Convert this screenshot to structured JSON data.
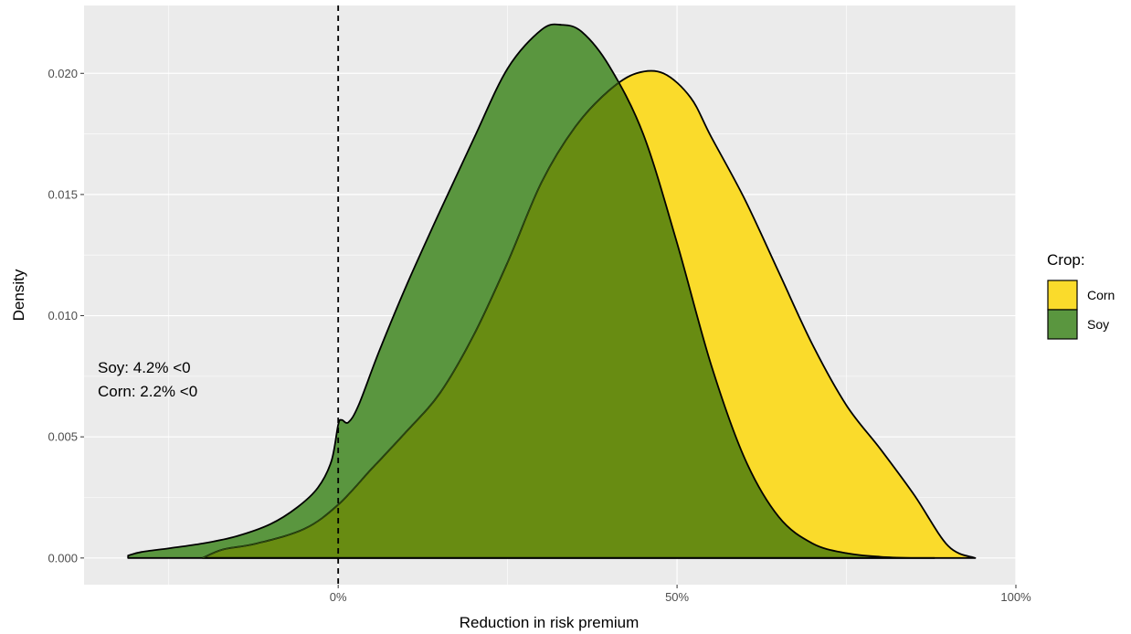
{
  "chart_data": {
    "type": "area",
    "title": "",
    "xlabel": "Reduction in risk premium",
    "ylabel": "Density",
    "xlim": [
      -0.375,
      1.0
    ],
    "ylim": [
      -0.0011,
      0.0228
    ],
    "x_ticks": [
      {
        "value": 0.0,
        "label": "0%"
      },
      {
        "value": 0.5,
        "label": "50%"
      },
      {
        "value": 1.0,
        "label": "100%"
      }
    ],
    "x_minor_ticks": [
      -0.25,
      0.25,
      0.75
    ],
    "y_ticks": [
      {
        "value": 0.0,
        "label": "0.000"
      },
      {
        "value": 0.005,
        "label": "0.005"
      },
      {
        "value": 0.01,
        "label": "0.010"
      },
      {
        "value": 0.015,
        "label": "0.015"
      },
      {
        "value": 0.02,
        "label": "0.020"
      }
    ],
    "y_minor_ticks": [
      0.0025,
      0.0075,
      0.0125,
      0.0175
    ],
    "reference_line": {
      "x": 0.0,
      "style": "dashed"
    },
    "annotation": [
      "Soy: 4.2% <0",
      "Corn: 2.2% <0"
    ],
    "legend": {
      "title": "Crop:",
      "position": "right",
      "entries": [
        {
          "label": "Corn",
          "color": "#FADB2B"
        },
        {
          "label": "Soy",
          "color": "#5A963F"
        }
      ]
    },
    "overlap_color": "#688C12",
    "series": [
      {
        "name": "Corn",
        "color": "#FADB2B",
        "x": [
          -0.2,
          -0.17,
          -0.12,
          -0.05,
          0.0,
          0.05,
          0.1,
          0.15,
          0.2,
          0.25,
          0.3,
          0.35,
          0.4,
          0.44,
          0.48,
          0.52,
          0.55,
          0.6,
          0.65,
          0.7,
          0.75,
          0.8,
          0.85,
          0.9,
          0.94
        ],
        "y": [
          0.0,
          0.00035,
          0.0006,
          0.0012,
          0.0022,
          0.0037,
          0.0052,
          0.0068,
          0.0092,
          0.0122,
          0.0155,
          0.0178,
          0.0193,
          0.02,
          0.02,
          0.019,
          0.0174,
          0.0148,
          0.0118,
          0.0088,
          0.0063,
          0.0045,
          0.0026,
          0.0005,
          0.0
        ]
      },
      {
        "name": "Soy",
        "color": "#5A963F",
        "x": [
          -0.31,
          -0.29,
          -0.25,
          -0.2,
          -0.15,
          -0.1,
          -0.06,
          -0.03,
          -0.01,
          0.0,
          0.005,
          0.015,
          0.03,
          0.06,
          0.1,
          0.15,
          0.2,
          0.25,
          0.3,
          0.33,
          0.36,
          0.4,
          0.45,
          0.5,
          0.55,
          0.6,
          0.65,
          0.7,
          0.75,
          0.8,
          0.85,
          0.88
        ],
        "y": [
          0.0001,
          0.00025,
          0.0004,
          0.0006,
          0.0009,
          0.0014,
          0.0021,
          0.0029,
          0.004,
          0.0055,
          0.0057,
          0.0056,
          0.0063,
          0.0085,
          0.0112,
          0.0143,
          0.0173,
          0.0202,
          0.0218,
          0.022,
          0.0217,
          0.0203,
          0.0175,
          0.013,
          0.008,
          0.0041,
          0.0017,
          0.0006,
          0.0002,
          5e-05,
          0.0,
          0.0
        ]
      }
    ]
  }
}
